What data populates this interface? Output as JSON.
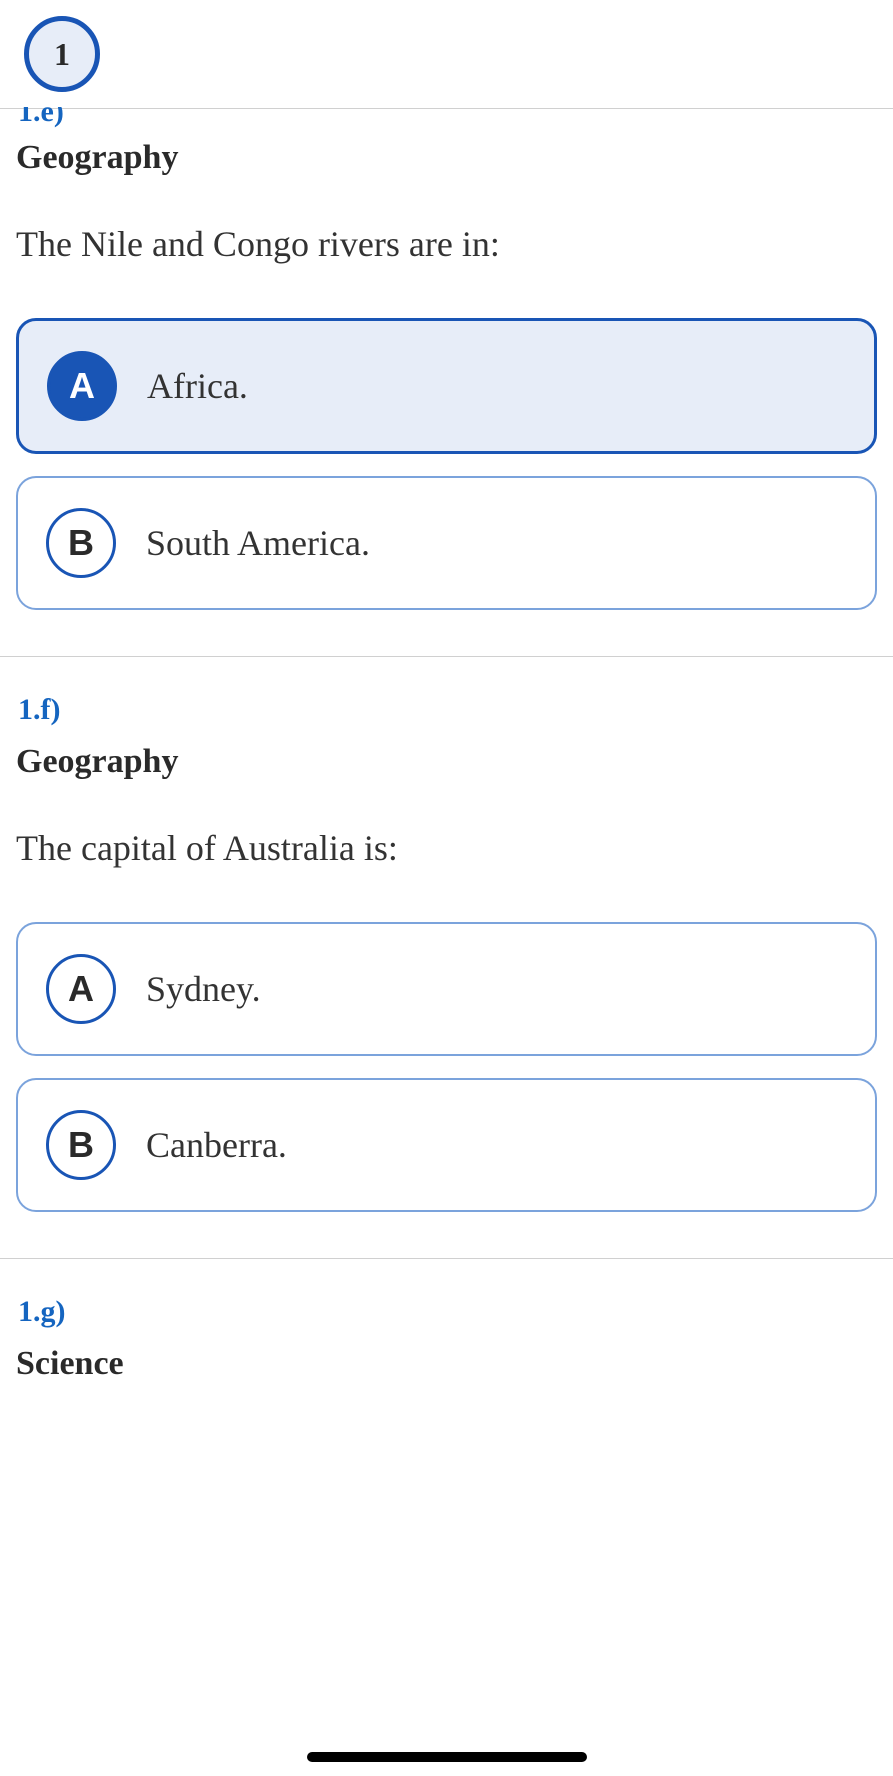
{
  "header": {
    "page_number": "1"
  },
  "questions": [
    {
      "number": "1.e)",
      "category": "Geography",
      "text": "The Nile and Congo rivers are in:",
      "options": [
        {
          "letter": "A",
          "text": "Africa.",
          "selected": true
        },
        {
          "letter": "B",
          "text": "South America.",
          "selected": false
        }
      ]
    },
    {
      "number": "1.f)",
      "category": "Geography",
      "text": "The capital of Australia is:",
      "options": [
        {
          "letter": "A",
          "text": "Sydney.",
          "selected": false
        },
        {
          "letter": "B",
          "text": "Canberra.",
          "selected": false
        }
      ]
    },
    {
      "number": "1.g)",
      "category": "Science",
      "text": "",
      "options": []
    }
  ],
  "colors": {
    "primary": "#1955b5",
    "primary_light": "#e7edf8",
    "border_light": "#7ba3dc",
    "text_dark": "#2a2a2a",
    "text_body": "#333333",
    "divider": "#d0d0d0"
  }
}
